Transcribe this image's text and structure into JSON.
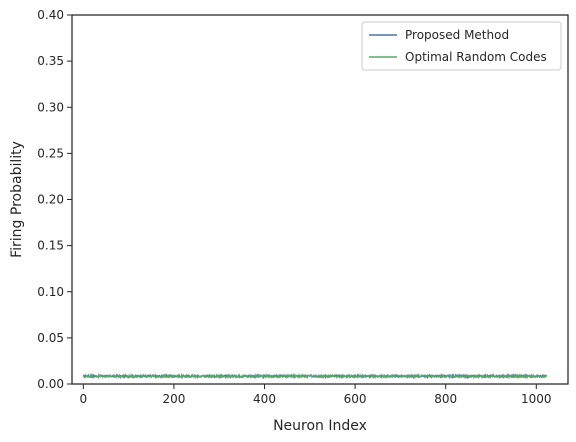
{
  "chart_data": {
    "type": "line",
    "xlabel": "Neuron Index",
    "ylabel": "Firing Probability",
    "xlim": [
      -25,
      1070
    ],
    "ylim": [
      0,
      0.4
    ],
    "xticks": [
      0,
      200,
      400,
      600,
      800,
      1000
    ],
    "yticks": [
      0.0,
      0.05,
      0.1,
      0.15,
      0.2,
      0.25,
      0.3,
      0.35,
      0.4
    ],
    "xtick_labels": [
      "0",
      "200",
      "400",
      "600",
      "800",
      "1000"
    ],
    "ytick_labels": [
      "0.00",
      "0.05",
      "0.10",
      "0.15",
      "0.20",
      "0.25",
      "0.30",
      "0.35",
      "0.40"
    ],
    "legend_position": "upper right",
    "grid": false,
    "series": [
      {
        "name": "Proposed Method",
        "color": "#4c72b0",
        "x_range": [
          0,
          1023
        ],
        "mean": 0.0085,
        "spread": 0.0012
      },
      {
        "name": "Optimal Random Codes",
        "color": "#55a868",
        "x_range": [
          0,
          1023
        ],
        "mean": 0.0085,
        "spread": 0.0012
      }
    ]
  }
}
